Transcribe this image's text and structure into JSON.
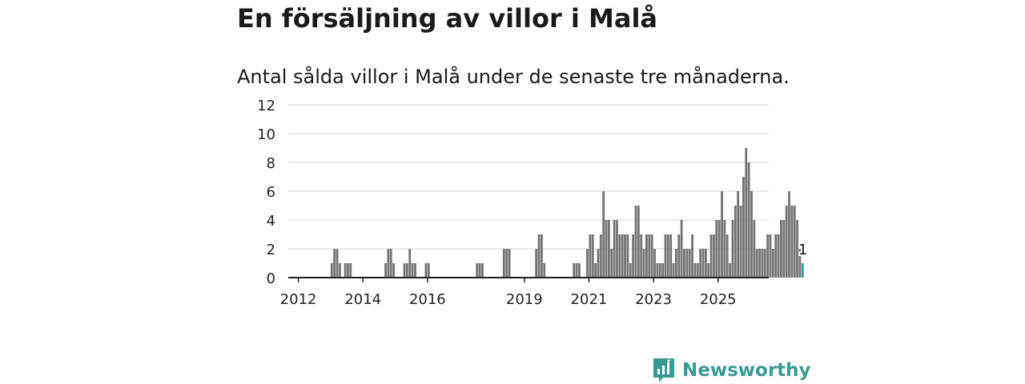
{
  "title": "En försäljning av villor i Malå",
  "subtitle": "Antal sålda villor i Malå under de senaste tre månaderna.",
  "brand": "Newsworthy",
  "colors": {
    "bar": "#737373",
    "highlight": "#2ca59f",
    "grid": "#d9d9d9",
    "axis": "#222222",
    "brand": "#3a9a94"
  },
  "chart_data": {
    "type": "bar",
    "title": "",
    "xlabel": "",
    "ylabel": "",
    "ylim": [
      0,
      12
    ],
    "yticks": [
      "0",
      "2",
      "4",
      "6",
      "8",
      "10",
      "12"
    ],
    "xticks": [
      "2012",
      "2014",
      "2016",
      "2019",
      "2021",
      "2023",
      "2025"
    ],
    "start": "2011-10",
    "end": "2025-04",
    "grid": true,
    "highlight_label": "1",
    "values": [
      0,
      0,
      0,
      0,
      0,
      0,
      0,
      0,
      0,
      0,
      0,
      0,
      0,
      0,
      0,
      1,
      2,
      2,
      1,
      0,
      1,
      1,
      1,
      0,
      0,
      0,
      0,
      0,
      0,
      0,
      0,
      0,
      0,
      0,
      0,
      1,
      2,
      2,
      1,
      0,
      0,
      0,
      1,
      1,
      2,
      1,
      1,
      0,
      0,
      0,
      1,
      1,
      0,
      0,
      0,
      0,
      0,
      0,
      0,
      0,
      0,
      0,
      0,
      0,
      0,
      0,
      0,
      0,
      0,
      1,
      1,
      1,
      0,
      0,
      0,
      0,
      0,
      0,
      0,
      2,
      2,
      2,
      0,
      0,
      0,
      0,
      0,
      0,
      0,
      0,
      0,
      2,
      3,
      3,
      1,
      0,
      0,
      0,
      0,
      0,
      0,
      0,
      0,
      0,
      0,
      1,
      1,
      1,
      0,
      0,
      2,
      3,
      3,
      1,
      2,
      3,
      6,
      4,
      4,
      2,
      4,
      4,
      3,
      3,
      3,
      3,
      1,
      3,
      5,
      5,
      3,
      2,
      3,
      3,
      3,
      2,
      1,
      1,
      1,
      3,
      3,
      3,
      1,
      2,
      3,
      4,
      2,
      2,
      2,
      3,
      1,
      1,
      2,
      2,
      2,
      1,
      3,
      3,
      4,
      4,
      6,
      4,
      3,
      1,
      4,
      5,
      6,
      5,
      7,
      9,
      8,
      6,
      4,
      2,
      2,
      2,
      2,
      3,
      3,
      2,
      3,
      3,
      4,
      4,
      5,
      6,
      5,
      5,
      4,
      2,
      1
    ]
  }
}
